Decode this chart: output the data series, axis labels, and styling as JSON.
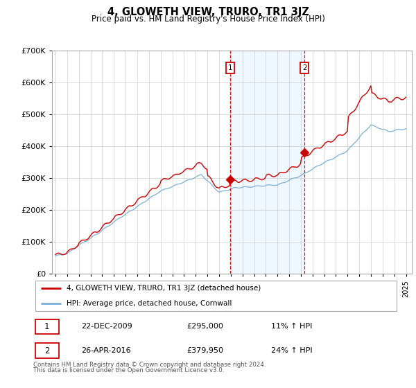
{
  "title": "4, GLOWETH VIEW, TRURO, TR1 3JZ",
  "subtitle": "Price paid vs. HM Land Registry's House Price Index (HPI)",
  "red_label": "4, GLOWETH VIEW, TRURO, TR1 3JZ (detached house)",
  "blue_label": "HPI: Average price, detached house, Cornwall",
  "red_color": "#cc0000",
  "blue_color": "#7bafd4",
  "purchase1_year": 2009.97,
  "purchase1_price": 295000,
  "purchase1_date": "22-DEC-2009",
  "purchase1_pct": "11% ↑ HPI",
  "purchase2_year": 2016.3,
  "purchase2_price": 379950,
  "purchase2_date": "26-APR-2016",
  "purchase2_pct": "24% ↑ HPI",
  "ylim": [
    0,
    700000
  ],
  "yticks": [
    0,
    100000,
    200000,
    300000,
    400000,
    500000,
    600000,
    700000
  ],
  "footnote1": "Contains HM Land Registry data © Crown copyright and database right 2024.",
  "footnote2": "This data is licensed under the Open Government Licence v3.0.",
  "background_color": "#ffffff",
  "grid_color": "#cccccc",
  "shade_color": "#ddeeff"
}
